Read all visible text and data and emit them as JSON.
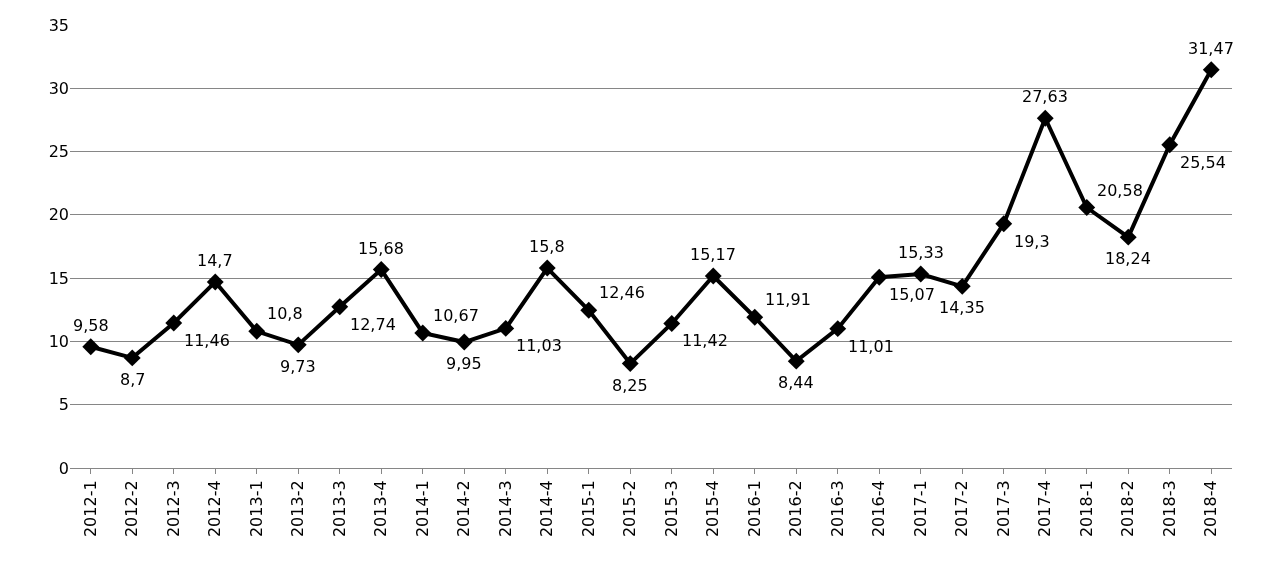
{
  "chart_data": {
    "type": "line",
    "categories": [
      "2012-1",
      "2012-2",
      "2012-3",
      "2012-4",
      "2013-1",
      "2013-2",
      "2013-3",
      "2013-4",
      "2014-1",
      "2014-2",
      "2014-3",
      "2014-4",
      "2015-1",
      "2015-2",
      "2015-3",
      "2015-4",
      "2016-1",
      "2016-2",
      "2016-3",
      "2016-4",
      "2017-1",
      "2017-2",
      "2017-3",
      "2017-4",
      "2018-1",
      "2018-2",
      "2018-3",
      "2018-4"
    ],
    "series": [
      {
        "color": "#000000",
        "values": [
          9.58,
          8.7,
          11.46,
          14.7,
          10.8,
          9.73,
          12.74,
          15.68,
          10.67,
          9.95,
          11.03,
          15.8,
          12.46,
          8.25,
          11.42,
          15.17,
          11.91,
          8.44,
          11.01,
          15.07,
          15.33,
          14.35,
          19.3,
          27.63,
          20.58,
          18.24,
          25.54,
          31.47
        ],
        "value_labels": [
          "9,58",
          "8,7",
          "11,46",
          "14,7",
          "10,8",
          "9,73",
          "12,74",
          "15,68",
          "10,67",
          "9,95",
          "11,03",
          "15,8",
          "12,46",
          "8,25",
          "11,42",
          "15,17",
          "11,91",
          "8,44",
          "11,01",
          "15,07",
          "15,33",
          "14,35",
          "19,3",
          "27,63",
          "20,58",
          "18,24",
          "25,54",
          "31,47"
        ]
      }
    ],
    "ylim": [
      0,
      35
    ],
    "yticks": [
      0,
      5,
      10,
      15,
      20,
      25,
      30,
      35
    ],
    "grid": "y",
    "marker": "diamond",
    "line_style": "solid",
    "legend": false
  }
}
